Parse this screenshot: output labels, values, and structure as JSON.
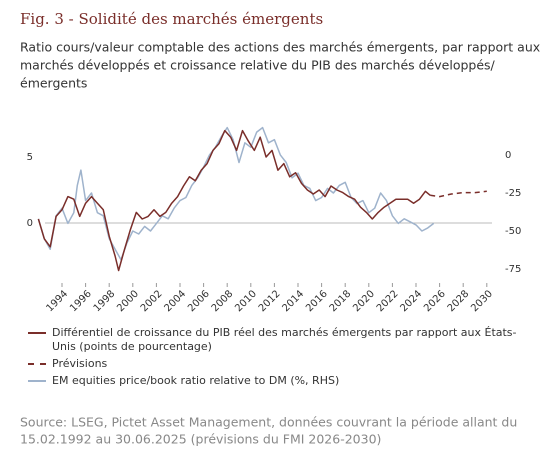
{
  "chart_data": {
    "type": "line",
    "title": "Fig. 3 - Solidité des marchés émergents",
    "subtitle": [
      "Ratio cours/valeur comptable des actions des marchés émergents, par rapport aux",
      "marchés développés et croissance relative du PIB des marchés développés/",
      "émergents"
    ],
    "source": [
      "Source: LSEG, Pictet Asset Management, données couvrant la période allant du",
      "15.02.1992 au 30.06.2025 (prévisions du FMI 2026-2030)"
    ],
    "xlim": [
      1992,
      2031
    ],
    "xticks": [
      1994,
      1996,
      1998,
      2000,
      2002,
      2004,
      2006,
      2008,
      2010,
      2012,
      2014,
      2016,
      2018,
      2020,
      2022,
      2024,
      2026,
      2028,
      2030
    ],
    "ylim": [
      -4,
      8
    ],
    "yticks": [
      0,
      5
    ],
    "y2lim": [
      -79.5,
      24.7
    ],
    "y2ticks": [
      0,
      -25,
      -50,
      -75
    ],
    "series": [
      {
        "name": "Différentiel de croissance du PIB réel des marchés émergents par rapport aux États-Unis (points de pourcentage)",
        "color": "#7a2e2a",
        "axis": "y",
        "x": [
          1992.0,
          1992.5,
          1993.0,
          1993.5,
          1994.0,
          1994.5,
          1995.0,
          1995.5,
          1996.0,
          1996.5,
          1997.0,
          1997.5,
          1998.0,
          1998.5,
          1998.8,
          1999.3,
          1999.8,
          2000.3,
          2000.8,
          2001.3,
          2001.8,
          2002.3,
          2002.8,
          2003.3,
          2003.8,
          2004.3,
          2004.8,
          2005.3,
          2005.8,
          2006.3,
          2006.8,
          2007.3,
          2007.8,
          2008.3,
          2008.8,
          2009.3,
          2009.8,
          2010.3,
          2010.8,
          2011.3,
          2011.8,
          2012.3,
          2012.8,
          2013.3,
          2013.8,
          2014.3,
          2014.8,
          2015.3,
          2015.8,
          2016.3,
          2016.8,
          2017.3,
          2017.8,
          2018.3,
          2018.8,
          2019.3,
          2019.8,
          2020.3,
          2020.8,
          2021.3,
          2021.8,
          2022.3,
          2022.8,
          2023.3,
          2023.8,
          2024.3,
          2024.8,
          2025.2
        ],
        "values": [
          0.3,
          -1.2,
          -1.8,
          0.5,
          1.0,
          2.0,
          1.8,
          0.5,
          1.5,
          2.0,
          1.5,
          1.0,
          -1.0,
          -2.5,
          -3.6,
          -2.0,
          -0.5,
          0.8,
          0.3,
          0.5,
          1.0,
          0.5,
          0.8,
          1.5,
          2.0,
          2.8,
          3.5,
          3.2,
          4.0,
          4.5,
          5.5,
          6.0,
          7.0,
          6.5,
          5.5,
          7.0,
          6.2,
          5.5,
          6.5,
          5.0,
          5.5,
          4.0,
          4.5,
          3.5,
          3.8,
          3.0,
          2.5,
          2.2,
          2.5,
          2.0,
          2.8,
          2.5,
          2.3,
          2.0,
          1.8,
          1.2,
          0.8,
          0.3,
          0.8,
          1.2,
          1.5,
          1.8,
          1.8,
          1.8,
          1.5,
          1.8,
          2.4,
          2.1
        ]
      },
      {
        "name": "Prévisions",
        "color": "#7a2e2a",
        "axis": "y",
        "dashed": true,
        "x": [
          2025.2,
          2026,
          2027,
          2028,
          2029,
          2030
        ],
        "values": [
          2.1,
          2.0,
          2.2,
          2.3,
          2.3,
          2.4
        ]
      },
      {
        "name": "EM equities price/book ratio relative to DM (%, RHS)",
        "color": "#9fb3cc",
        "axis": "y2",
        "x": [
          1992.0,
          1992.5,
          1993.0,
          1993.5,
          1994.0,
          1994.5,
          1995.0,
          1995.3,
          1995.6,
          1996.0,
          1996.5,
          1997.0,
          1997.5,
          1998.0,
          1998.5,
          1999.0,
          1999.5,
          2000.0,
          2000.5,
          2001.0,
          2001.5,
          2002.0,
          2002.5,
          2003.0,
          2003.5,
          2004.0,
          2004.5,
          2005.0,
          2005.5,
          2006.0,
          2006.5,
          2007.0,
          2007.5,
          2008.0,
          2008.5,
          2009.0,
          2009.5,
          2010.0,
          2010.5,
          2011.0,
          2011.5,
          2012.0,
          2012.5,
          2013.0,
          2013.5,
          2014.0,
          2014.5,
          2015.0,
          2015.5,
          2016.0,
          2016.5,
          2017.0,
          2017.5,
          2018.0,
          2018.5,
          2019.0,
          2019.5,
          2020.0,
          2020.5,
          2021.0,
          2021.5,
          2022.0,
          2022.5,
          2023.0,
          2023.5,
          2024.0,
          2024.5,
          2025.0,
          2025.5
        ],
        "values": [
          -42,
          -55,
          -62,
          -40,
          -35,
          -45,
          -38,
          -20,
          -10,
          -30,
          -25,
          -38,
          -40,
          -55,
          -62,
          -69,
          -58,
          -50,
          -52,
          -47,
          -50,
          -45,
          -40,
          -42,
          -35,
          -30,
          -28,
          -20,
          -15,
          -8,
          0,
          5,
          12,
          18,
          10,
          -5,
          8,
          5,
          15,
          18,
          8,
          10,
          0,
          -5,
          -15,
          -12,
          -20,
          -22,
          -30,
          -28,
          -22,
          -25,
          -20,
          -18,
          -28,
          -32,
          -30,
          -38,
          -35,
          -25,
          -30,
          -40,
          -45,
          -42,
          -44,
          -46,
          -50,
          -48,
          -45
        ]
      }
    ]
  }
}
